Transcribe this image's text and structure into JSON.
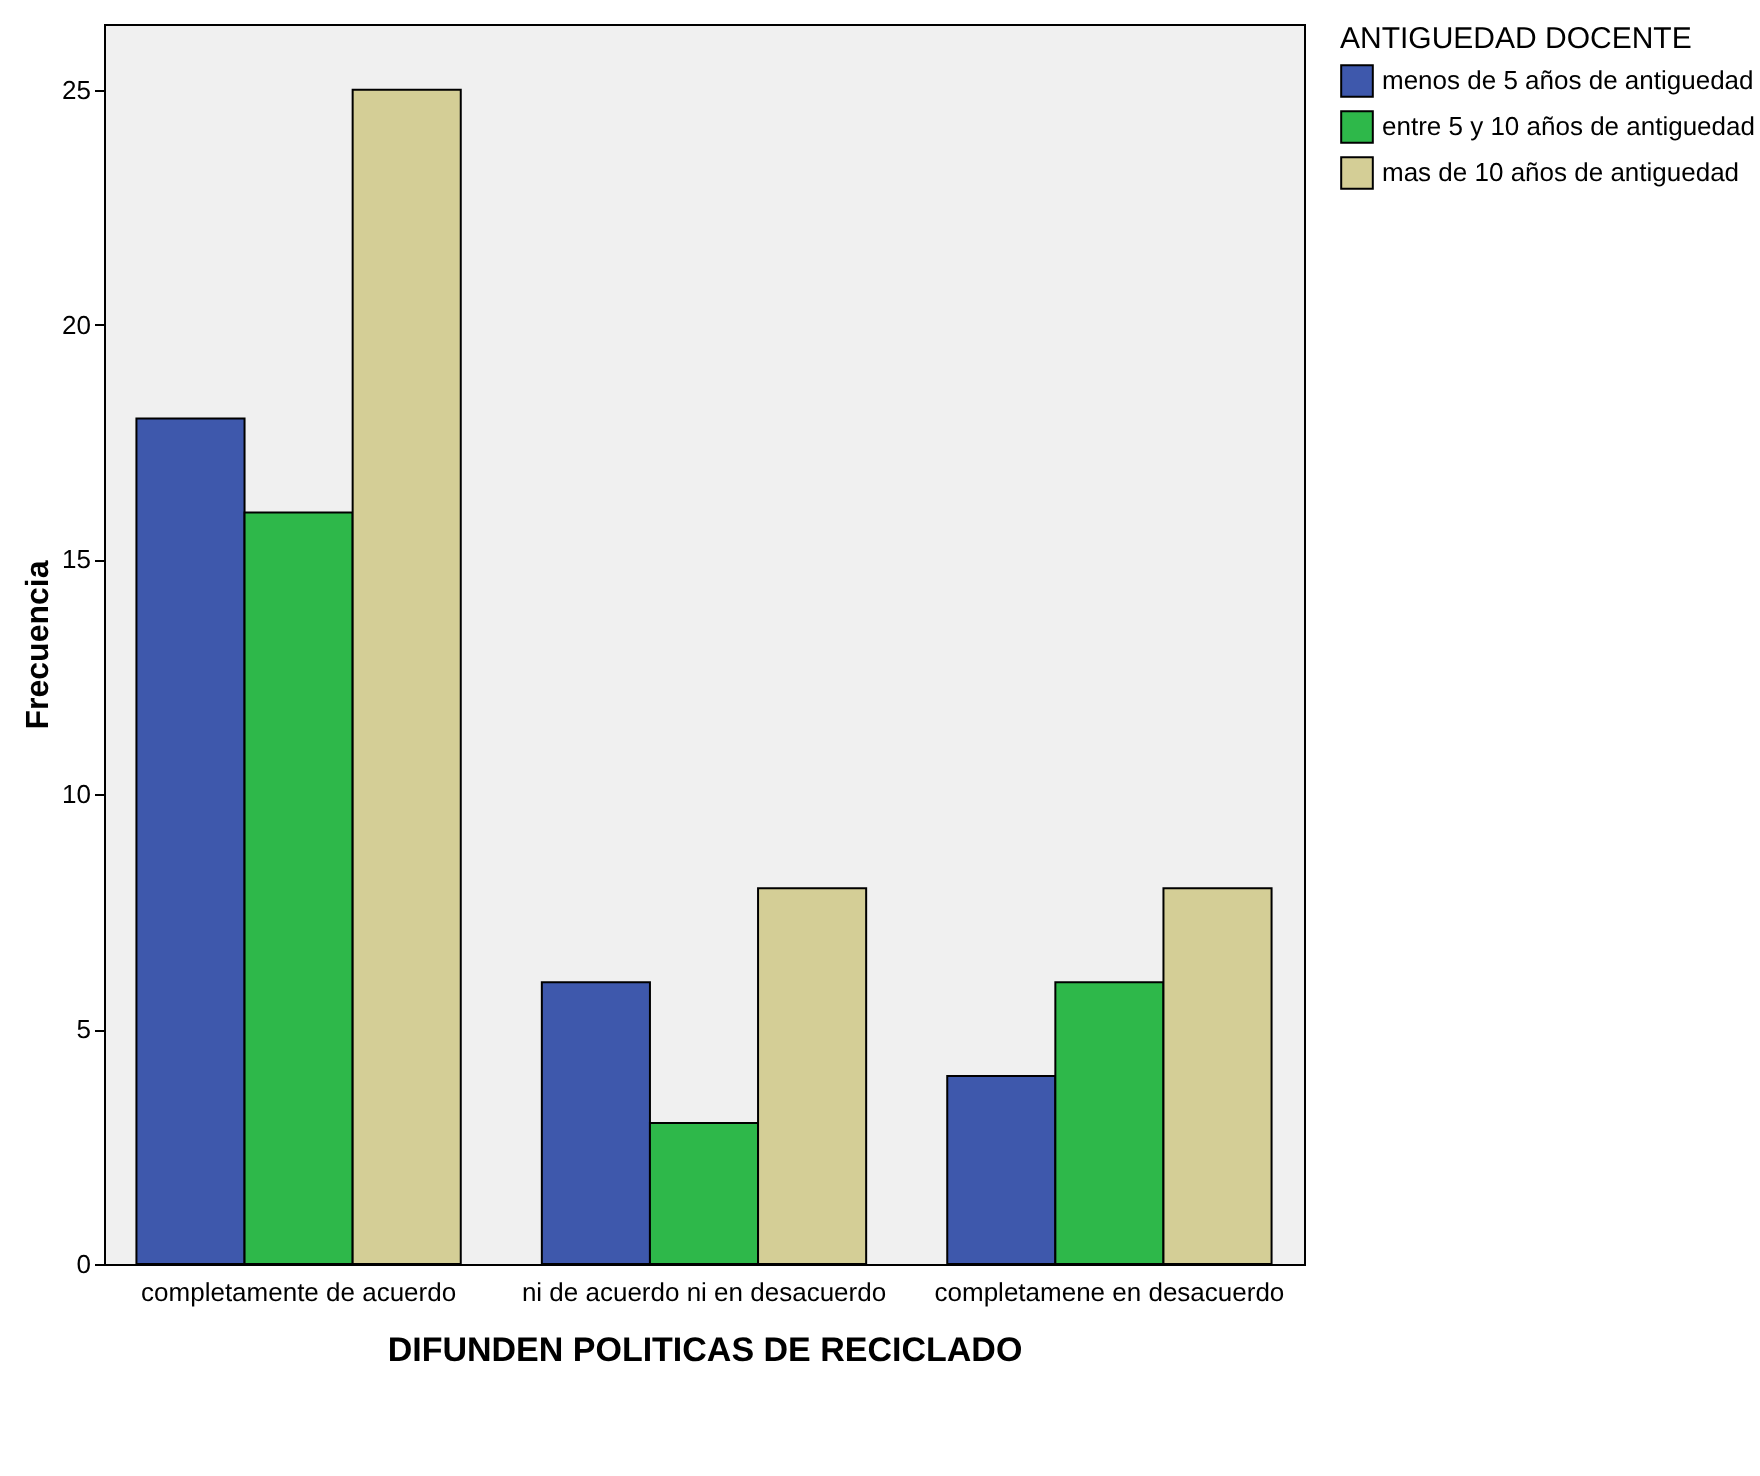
{
  "chart_data": {
    "type": "bar",
    "xlabel": "DIFUNDEN POLITICAS DE RECICLADO",
    "ylabel": "Frecuencia",
    "legend_title": "ANTIGUEDAD DOCENTE",
    "legend": "top right",
    "categories": [
      "completamente de acuerdo",
      "ni de acuerdo ni en desacuerdo",
      "completamene en desacuerdo"
    ],
    "series": [
      {
        "name": "menos de 5 años de antiguedad",
        "color": "#3e58ac",
        "values": [
          18,
          6,
          4
        ]
      },
      {
        "name": "entre 5 y 10 años de antiguedad",
        "color": "#2eb84a",
        "values": [
          16,
          3,
          6
        ]
      },
      {
        "name": "mas de 10 años de antiguedad",
        "color": "#d4ce96",
        "values": [
          25,
          8,
          8
        ]
      }
    ],
    "ylim": [
      0,
      26.4
    ],
    "yticks": [
      0,
      5,
      10,
      15,
      20,
      25
    ]
  }
}
